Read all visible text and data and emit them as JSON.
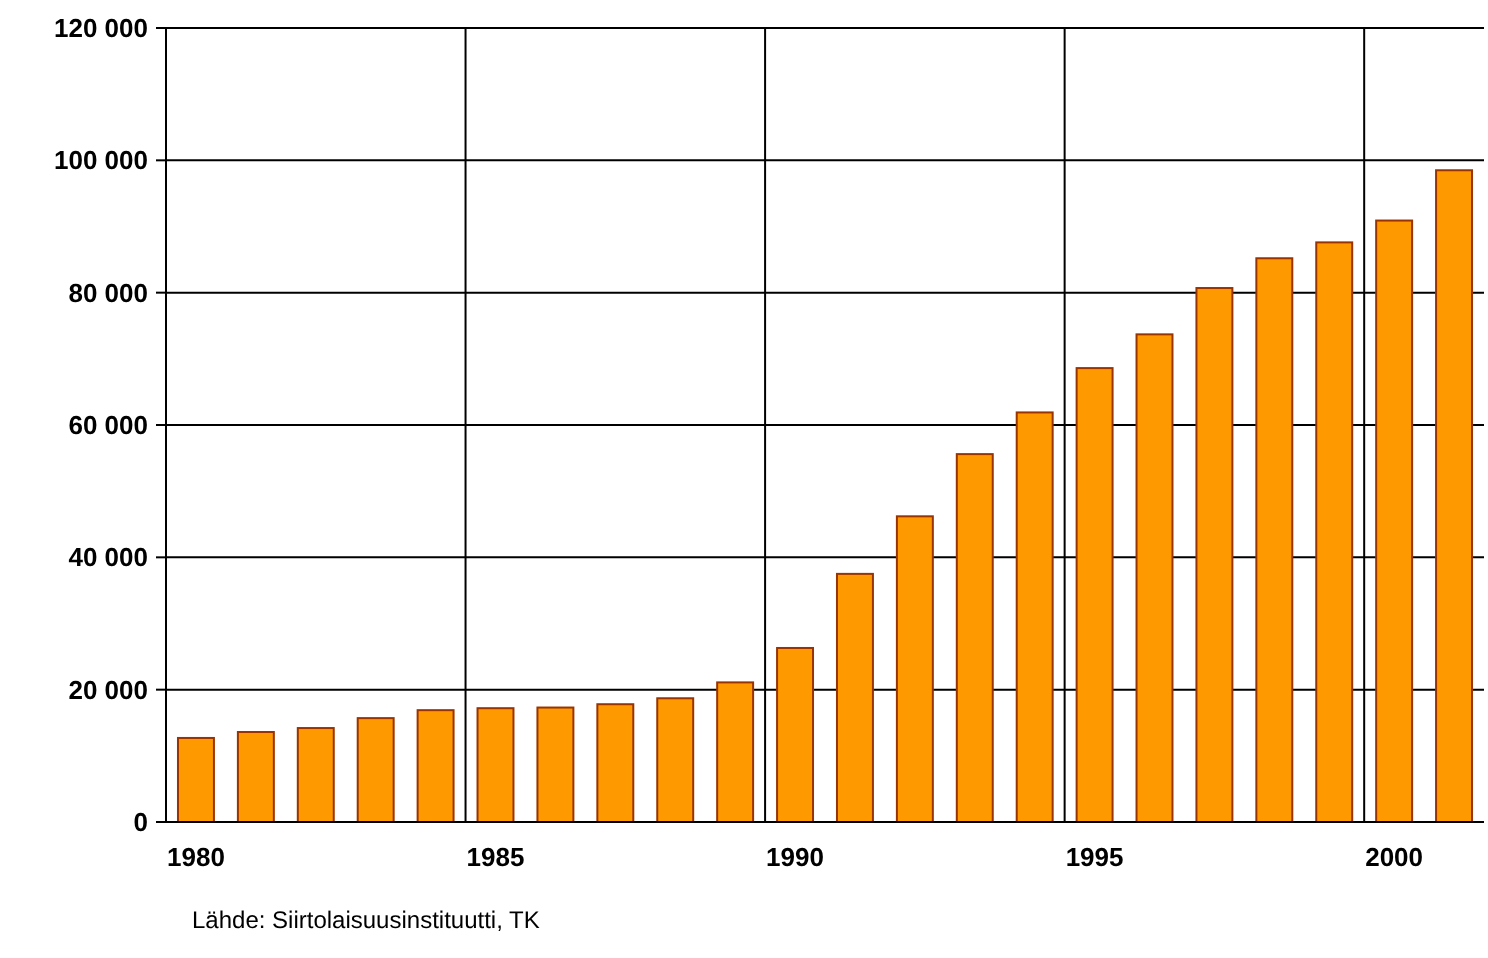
{
  "chart_data": {
    "type": "bar",
    "categories": [
      "1980",
      null,
      null,
      null,
      null,
      "1985",
      null,
      null,
      null,
      null,
      "1990",
      null,
      null,
      null,
      null,
      "1995",
      null,
      null,
      null,
      null,
      "2000",
      null
    ],
    "values": [
      12700,
      13600,
      14200,
      15700,
      16900,
      17200,
      17300,
      17800,
      18700,
      21100,
      26300,
      37500,
      46200,
      55600,
      61900,
      68600,
      73700,
      80700,
      85200,
      87600,
      90900,
      98500
    ],
    "color": "#ff9900",
    "ylim": [
      0,
      120000
    ],
    "yticks": [
      {
        "value": 0,
        "label": "0"
      },
      {
        "value": 20000,
        "label": "20 000"
      },
      {
        "value": 40000,
        "label": "40 000"
      },
      {
        "value": 60000,
        "label": "60 000"
      },
      {
        "value": 80000,
        "label": "80 000"
      },
      {
        "value": 100000,
        "label": "100 000"
      },
      {
        "value": 120000,
        "label": "120 000"
      }
    ],
    "grid": true,
    "annotations": [
      "Lähde: Siirtolaisuusinstituutti, TK"
    ]
  }
}
